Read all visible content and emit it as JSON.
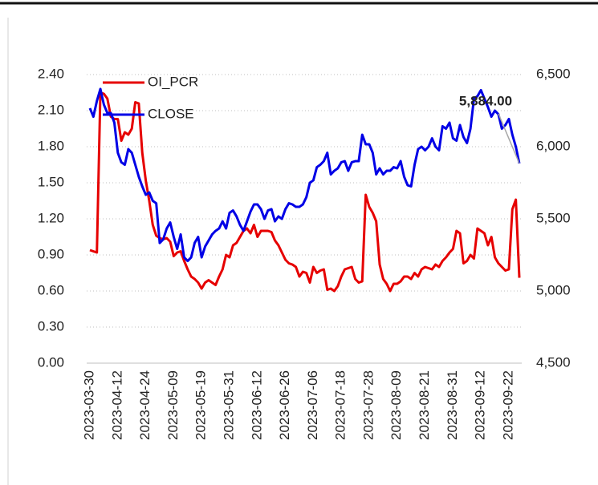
{
  "chart_data": {
    "type": "line",
    "categories": [
      "2023-03-30",
      null,
      null,
      null,
      null,
      null,
      null,
      null,
      "2023-04-12",
      null,
      null,
      null,
      null,
      null,
      null,
      null,
      "2023-04-24",
      null,
      null,
      null,
      null,
      null,
      null,
      null,
      "2023-05-09",
      null,
      null,
      null,
      null,
      null,
      null,
      null,
      "2023-05-19",
      null,
      null,
      null,
      null,
      null,
      null,
      null,
      "2023-05-31",
      null,
      null,
      null,
      null,
      null,
      null,
      null,
      "2023-06-12",
      null,
      null,
      null,
      null,
      null,
      null,
      null,
      "2023-06-26",
      null,
      null,
      null,
      null,
      null,
      null,
      null,
      "2023-07-06",
      null,
      null,
      null,
      null,
      null,
      null,
      null,
      "2023-07-18",
      null,
      null,
      null,
      null,
      null,
      null,
      null,
      "2023-07-28",
      null,
      null,
      null,
      null,
      null,
      null,
      null,
      "2023-08-09",
      null,
      null,
      null,
      null,
      null,
      null,
      null,
      "2023-08-21",
      null,
      null,
      null,
      null,
      null,
      null,
      null,
      "2023-08-31",
      null,
      null,
      null,
      null,
      null,
      null,
      null,
      "2023-09-12",
      null,
      null,
      null,
      null,
      null,
      null,
      null,
      "2023-09-22",
      null,
      null,
      null
    ],
    "series": [
      {
        "name": "OI_PCR",
        "color": "#e60000",
        "values": [
          0.94,
          0.93,
          0.92,
          2.25,
          2.24,
          2.2,
          2.05,
          2.03,
          2.03,
          1.85,
          1.92,
          1.9,
          1.95,
          2.17,
          2.16,
          1.75,
          1.52,
          1.35,
          1.15,
          1.06,
          1.04,
          1.03,
          1.04,
          1.01,
          0.89,
          0.92,
          0.93,
          0.85,
          0.78,
          0.72,
          0.7,
          0.67,
          0.62,
          0.67,
          0.69,
          0.67,
          0.65,
          0.72,
          0.78,
          0.9,
          0.88,
          0.98,
          1.0,
          1.05,
          1.1,
          1.12,
          1.08,
          1.15,
          1.05,
          1.1,
          1.1,
          1.1,
          1.09,
          1.02,
          0.98,
          0.92,
          0.86,
          0.83,
          0.82,
          0.8,
          0.72,
          0.76,
          0.75,
          0.67,
          0.8,
          0.75,
          0.77,
          0.78,
          0.61,
          0.62,
          0.6,
          0.64,
          0.72,
          0.78,
          0.79,
          0.8,
          0.7,
          0.67,
          0.68,
          1.4,
          1.3,
          1.25,
          1.18,
          0.82,
          0.7,
          0.66,
          0.6,
          0.66,
          0.66,
          0.68,
          0.72,
          0.72,
          0.7,
          0.75,
          0.72,
          0.78,
          0.8,
          0.79,
          0.78,
          0.82,
          0.8,
          0.85,
          0.88,
          0.92,
          0.95,
          1.1,
          1.08,
          0.83,
          0.85,
          0.9,
          0.87,
          1.12,
          1.1,
          1.08,
          0.98,
          1.05,
          0.88,
          0.83,
          0.8,
          0.77,
          0.78,
          1.28,
          1.36,
          0.71
        ]
      },
      {
        "name": "CLOSE",
        "color": "#0000e6",
        "axis": "y2",
        "values": [
          6267,
          6208,
          6317,
          6400,
          6292,
          6233,
          6233,
          6167,
          5958,
          5892,
          5875,
          5983,
          5958,
          5875,
          5792,
          5725,
          5667,
          5683,
          5625,
          5608,
          5333,
          5358,
          5433,
          5475,
          5375,
          5292,
          5392,
          5233,
          5208,
          5233,
          5333,
          5375,
          5233,
          5308,
          5350,
          5392,
          5417,
          5433,
          5483,
          5433,
          5542,
          5558,
          5517,
          5458,
          5417,
          5483,
          5550,
          5600,
          5600,
          5567,
          5500,
          5558,
          5567,
          5483,
          5517,
          5500,
          5567,
          5608,
          5600,
          5583,
          5583,
          5600,
          5650,
          5750,
          5767,
          5858,
          5875,
          5900,
          5958,
          5808,
          5833,
          5850,
          5892,
          5900,
          5833,
          5892,
          5900,
          5900,
          6083,
          6017,
          6017,
          5958,
          5808,
          5850,
          5808,
          5833,
          5833,
          5858,
          5850,
          5900,
          5792,
          5733,
          5725,
          5875,
          5983,
          6000,
          5975,
          6000,
          6058,
          6000,
          5975,
          6142,
          6125,
          6167,
          6058,
          6042,
          6150,
          6067,
          6025,
          6125,
          6333,
          6350,
          6392,
          6333,
          6275,
          6208,
          6250,
          6225,
          6125,
          6150,
          6192,
          6083,
          6000,
          5884
        ],
        "value_labels": [
          null,
          null,
          null,
          null,
          null,
          null,
          null,
          null,
          null,
          null,
          null,
          null,
          null,
          null,
          null,
          null,
          null,
          null,
          null,
          null,
          null,
          null,
          null,
          null,
          null,
          null,
          null,
          null,
          null,
          null,
          null,
          null,
          null,
          null,
          null,
          null,
          null,
          null,
          null,
          null,
          null,
          null,
          null,
          null,
          null,
          null,
          null,
          null,
          null,
          null,
          null,
          null,
          null,
          null,
          null,
          null,
          null,
          null,
          null,
          null,
          null,
          null,
          null,
          null,
          null,
          null,
          null,
          null,
          null,
          null,
          null,
          null,
          null,
          null,
          null,
          null,
          null,
          null,
          null,
          null,
          null,
          null,
          null,
          null,
          null,
          null,
          null,
          null,
          null,
          null,
          null,
          null,
          null,
          null,
          null,
          null,
          null,
          null,
          null,
          null,
          null,
          null,
          null,
          null,
          null,
          null,
          null,
          null,
          null,
          null,
          null,
          null,
          null,
          null,
          null,
          null,
          null,
          null,
          null,
          null,
          null,
          null,
          null,
          "5,884.00"
        ]
      }
    ],
    "ylim": [
      0,
      2.4
    ],
    "yticks": [
      {
        "value": 0,
        "label": "0.00"
      },
      {
        "value": 0.3,
        "label": "0.30"
      },
      {
        "value": 0.6,
        "label": "0.60"
      },
      {
        "value": 0.9,
        "label": "0.90"
      },
      {
        "value": 1.2,
        "label": "1.20"
      },
      {
        "value": 1.5,
        "label": "1.50"
      },
      {
        "value": 1.8,
        "label": "1.80"
      },
      {
        "value": 2.1,
        "label": "2.10"
      },
      {
        "value": 2.4,
        "label": "2.40"
      }
    ],
    "y2lim": [
      4500,
      6500
    ],
    "y2ticks": [
      {
        "value": 4500,
        "label": "4,500"
      },
      {
        "value": 5000,
        "label": "5,000"
      },
      {
        "value": 5500,
        "label": "5,500"
      },
      {
        "value": 6000,
        "label": "6,000"
      },
      {
        "value": 6500,
        "label": "6,500"
      }
    ],
    "grid": true,
    "legend": "top-left"
  }
}
